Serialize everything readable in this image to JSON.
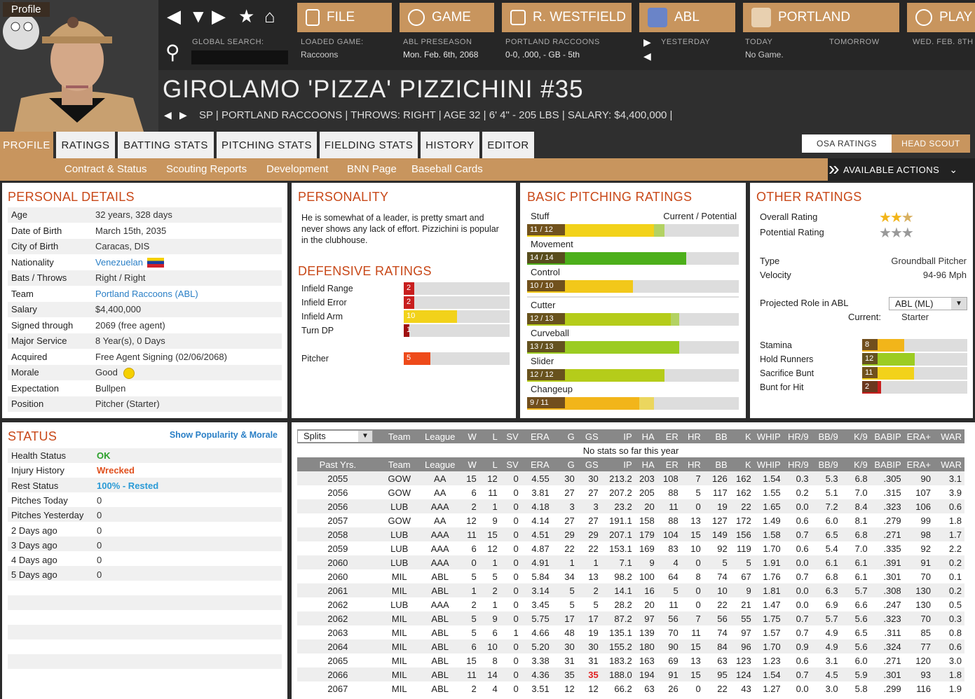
{
  "nav": {
    "file": "FILE",
    "game": "GAME",
    "team_home": "R. WESTFIELD",
    "league": "ABL",
    "team": "PORTLAND",
    "play": "PLAY",
    "global_search": "GLOBAL SEARCH:",
    "loaded_game_label": "LOADED GAME:",
    "loaded_game_value": "Raccoons",
    "league_sub": "ABL PRESEASON",
    "date": "Mon. Feb. 6th, 2068",
    "team_label": "PORTLAND RACCOONS",
    "team_record": "0-0, .000, - GB - 5th",
    "yesterday": "YESTERDAY",
    "today_label": "TODAY",
    "today_value": "No Game.",
    "tomorrow": "TOMORROW",
    "next_date": "WED. FEB. 8TH"
  },
  "player": {
    "name": "GIROLAMO 'PIZZA' PIZZICHINI  #35",
    "bio": "SP | PORTLAND RACCOONS  |  THROWS: RIGHT  |  AGE 32  |  6' 4\" - 205 LBS  |  SALARY: $4,400,000  |"
  },
  "tabs": [
    "PROFILE",
    "RATINGS",
    "BATTING STATS",
    "PITCHING STATS",
    "FIELDING STATS",
    "HISTORY",
    "EDITOR"
  ],
  "subtabs": [
    "Profile",
    "Contract & Status",
    "Scouting Reports",
    "Development",
    "BNN Page",
    "Baseball Cards"
  ],
  "actions_label": "AVAILABLE ACTIONS",
  "ratings_toggle": [
    "OSA RATINGS",
    "HEAD SCOUT"
  ],
  "personal": {
    "title": "PERSONAL DETAILS",
    "rows": [
      [
        "Age",
        "32 years, 328 days"
      ],
      [
        "Date of Birth",
        "March 15th, 2035"
      ],
      [
        "City of Birth",
        "Caracas, DIS"
      ],
      [
        "Nationality",
        "Venezuelan"
      ],
      [
        "Bats / Throws",
        "Right / Right"
      ],
      [
        "Team",
        "Portland Raccoons (ABL)"
      ],
      [
        "Salary",
        "$4,400,000"
      ],
      [
        "Signed through",
        "2069 (free agent)"
      ],
      [
        "Major Service",
        "8 Year(s), 0 Days"
      ],
      [
        "Acquired",
        "Free Agent Signing (02/06/2068)"
      ],
      [
        "Morale",
        "Good"
      ],
      [
        "Expectation",
        "Bullpen"
      ],
      [
        "Position",
        "Pitcher (Starter)"
      ]
    ]
  },
  "personality": {
    "title": "PERSONALITY",
    "text": "He is somewhat of a leader, is pretty smart and never shows any lack of effort. Pizzichini is popular in the clubhouse."
  },
  "defensive": {
    "title": "DEFENSIVE RATINGS",
    "rows": [
      {
        "label": "Infield Range",
        "value": "2",
        "frac": 0.1,
        "color": "#c81e1e"
      },
      {
        "label": "Infield Error",
        "value": "2",
        "frac": 0.1,
        "color": "#c81e1e"
      },
      {
        "label": "Infield Arm",
        "value": "10",
        "frac": 0.5,
        "color": "#f2d21a"
      },
      {
        "label": "Turn DP",
        "value": "1",
        "frac": 0.05,
        "color": "#a01010"
      },
      {
        "label": "Pitcher",
        "value": "5",
        "frac": 0.25,
        "color": "#ee4a1a"
      }
    ]
  },
  "pitching": {
    "title": "BASIC PITCHING RATINGS",
    "header": "Current / Potential",
    "rows": [
      {
        "label": "Stuff",
        "value": "11 / 12",
        "frac": 0.6,
        "pot": 0.65,
        "color": "#f2d21a",
        "pcolor": "#9ccc22"
      },
      {
        "label": "Movement",
        "value": "14 / 14",
        "frac": 0.75,
        "pot": 0.75,
        "color": "#4caf1a",
        "pcolor": "#4caf1a"
      },
      {
        "label": "Control",
        "value": "10 / 10",
        "frac": 0.5,
        "pot": 0.5,
        "color": "#f2c81a",
        "pcolor": "#f2c81a"
      },
      {
        "label": "Cutter",
        "value": "12 / 13",
        "frac": 0.68,
        "pot": 0.72,
        "color": "#b5cc1a",
        "pcolor": "#9ccc22"
      },
      {
        "label": "Curveball",
        "value": "13 / 13",
        "frac": 0.72,
        "pot": 0.72,
        "color": "#9ccc22",
        "pcolor": "#9ccc22"
      },
      {
        "label": "Slider",
        "value": "12 / 12",
        "frac": 0.65,
        "pot": 0.65,
        "color": "#b5cc1a",
        "pcolor": "#b5cc1a"
      },
      {
        "label": "Changeup",
        "value": "9 / 11",
        "frac": 0.53,
        "pot": 0.6,
        "color": "#f2b51a",
        "pcolor": "#f2d21a"
      }
    ]
  },
  "other": {
    "title": "OTHER RATINGS",
    "overall_label": "Overall Rating",
    "potential_label": "Potential Rating",
    "overall_stars": 2.5,
    "potential_stars": 2.5,
    "type_label": "Type",
    "type_value": "Groundball Pitcher",
    "velocity_label": "Velocity",
    "velocity_value": "94-96 Mph",
    "role_label": "Projected Role in ABL",
    "role_select": "ABL (ML)",
    "current_label": "Current:",
    "current_value": "Starter",
    "rows": [
      {
        "label": "Stamina",
        "value": "8",
        "frac": 0.4,
        "color": "#f2b51a"
      },
      {
        "label": "Hold Runners",
        "value": "12",
        "frac": 0.5,
        "color": "#9ccc22"
      },
      {
        "label": "Sacrifice Bunt",
        "value": "11",
        "frac": 0.49,
        "color": "#f2d21a"
      },
      {
        "label": "Bunt for Hit",
        "value": "2",
        "frac": 0.18,
        "color": "#c81e1e"
      }
    ]
  },
  "status": {
    "title": "STATUS",
    "link": "Show Popularity & Morale",
    "rows": [
      [
        "Health Status",
        "OK",
        "#2aa02a"
      ],
      [
        "Injury History",
        "Wrecked",
        "#e0501e"
      ],
      [
        "Rest Status",
        "100% - Rested",
        "#2a9ad6"
      ],
      [
        "Pitches Today",
        "0",
        ""
      ],
      [
        "Pitches Yesterday",
        "0",
        ""
      ],
      [
        "2 Days ago",
        "0",
        ""
      ],
      [
        "3 Days ago",
        "0",
        ""
      ],
      [
        "4 Days ago",
        "0",
        ""
      ],
      [
        "5 Days ago",
        "0",
        ""
      ]
    ]
  },
  "stats": {
    "split_select": "Splits",
    "columns": [
      "Team",
      "League",
      "W",
      "L",
      "SV",
      "ERA",
      "G",
      "GS",
      "IP",
      "HA",
      "ER",
      "HR",
      "BB",
      "K",
      "WHIP",
      "HR/9",
      "BB/9",
      "K/9",
      "BABIP",
      "ERA+",
      "WAR"
    ],
    "no_stats": "No stats so far this year",
    "past_label": "Past Yrs.",
    "rows": [
      [
        "2055",
        "GOW",
        "AA",
        "15",
        "12",
        "0",
        "4.55",
        "30",
        "30",
        "213.2",
        "203",
        "108",
        "7",
        "126",
        "162",
        "1.54",
        "0.3",
        "5.3",
        "6.8",
        ".305",
        "90",
        "3.1"
      ],
      [
        "2056",
        "GOW",
        "AA",
        "6",
        "11",
        "0",
        "3.81",
        "27",
        "27",
        "207.2",
        "205",
        "88",
        "5",
        "117",
        "162",
        "1.55",
        "0.2",
        "5.1",
        "7.0",
        ".315",
        "107",
        "3.9"
      ],
      [
        "2056",
        "LUB",
        "AAA",
        "2",
        "1",
        "0",
        "4.18",
        "3",
        "3",
        "23.2",
        "20",
        "11",
        "0",
        "19",
        "22",
        "1.65",
        "0.0",
        "7.2",
        "8.4",
        ".323",
        "106",
        "0.6"
      ],
      [
        "2057",
        "GOW",
        "AA",
        "12",
        "9",
        "0",
        "4.14",
        "27",
        "27",
        "191.1",
        "158",
        "88",
        "13",
        "127",
        "172",
        "1.49",
        "0.6",
        "6.0",
        "8.1",
        ".279",
        "99",
        "1.8"
      ],
      [
        "2058",
        "LUB",
        "AAA",
        "11",
        "15",
        "0",
        "4.51",
        "29",
        "29",
        "207.1",
        "179",
        "104",
        "15",
        "149",
        "156",
        "1.58",
        "0.7",
        "6.5",
        "6.8",
        ".271",
        "98",
        "1.7"
      ],
      [
        "2059",
        "LUB",
        "AAA",
        "6",
        "12",
        "0",
        "4.87",
        "22",
        "22",
        "153.1",
        "169",
        "83",
        "10",
        "92",
        "119",
        "1.70",
        "0.6",
        "5.4",
        "7.0",
        ".335",
        "92",
        "2.2"
      ],
      [
        "2060",
        "LUB",
        "AAA",
        "0",
        "1",
        "0",
        "4.91",
        "1",
        "1",
        "7.1",
        "9",
        "4",
        "0",
        "5",
        "5",
        "1.91",
        "0.0",
        "6.1",
        "6.1",
        ".391",
        "91",
        "0.2"
      ],
      [
        "2060",
        "MIL",
        "ABL",
        "5",
        "5",
        "0",
        "5.84",
        "34",
        "13",
        "98.2",
        "100",
        "64",
        "8",
        "74",
        "67",
        "1.76",
        "0.7",
        "6.8",
        "6.1",
        ".301",
        "70",
        "0.1"
      ],
      [
        "2061",
        "MIL",
        "ABL",
        "1",
        "2",
        "0",
        "3.14",
        "5",
        "2",
        "14.1",
        "16",
        "5",
        "0",
        "10",
        "9",
        "1.81",
        "0.0",
        "6.3",
        "5.7",
        ".308",
        "130",
        "0.2"
      ],
      [
        "2062",
        "LUB",
        "AAA",
        "2",
        "1",
        "0",
        "3.45",
        "5",
        "5",
        "28.2",
        "20",
        "11",
        "0",
        "22",
        "21",
        "1.47",
        "0.0",
        "6.9",
        "6.6",
        ".247",
        "130",
        "0.5"
      ],
      [
        "2062",
        "MIL",
        "ABL",
        "5",
        "9",
        "0",
        "5.75",
        "17",
        "17",
        "87.2",
        "97",
        "56",
        "7",
        "56",
        "55",
        "1.75",
        "0.7",
        "5.7",
        "5.6",
        ".323",
        "70",
        "0.3"
      ],
      [
        "2063",
        "MIL",
        "ABL",
        "5",
        "6",
        "1",
        "4.66",
        "48",
        "19",
        "135.1",
        "139",
        "70",
        "11",
        "74",
        "97",
        "1.57",
        "0.7",
        "4.9",
        "6.5",
        ".311",
        "85",
        "0.8"
      ],
      [
        "2064",
        "MIL",
        "ABL",
        "6",
        "10",
        "0",
        "5.20",
        "30",
        "30",
        "155.2",
        "180",
        "90",
        "15",
        "84",
        "96",
        "1.70",
        "0.9",
        "4.9",
        "5.6",
        ".324",
        "77",
        "0.6"
      ],
      [
        "2065",
        "MIL",
        "ABL",
        "15",
        "8",
        "0",
        "3.38",
        "31",
        "31",
        "183.2",
        "163",
        "69",
        "13",
        "63",
        "123",
        "1.23",
        "0.6",
        "3.1",
        "6.0",
        ".271",
        "120",
        "3.0"
      ],
      [
        "2066",
        "MIL",
        "ABL",
        "11",
        "14",
        "0",
        "4.36",
        "35",
        "35",
        "188.0",
        "194",
        "91",
        "15",
        "95",
        "124",
        "1.54",
        "0.7",
        "4.5",
        "5.9",
        ".301",
        "93",
        "1.8"
      ],
      [
        "2067",
        "MIL",
        "ABL",
        "2",
        "4",
        "0",
        "3.51",
        "12",
        "12",
        "66.2",
        "63",
        "26",
        "0",
        "22",
        "43",
        "1.27",
        "0.0",
        "3.0",
        "5.8",
        ".299",
        "116",
        "1.9"
      ]
    ]
  }
}
